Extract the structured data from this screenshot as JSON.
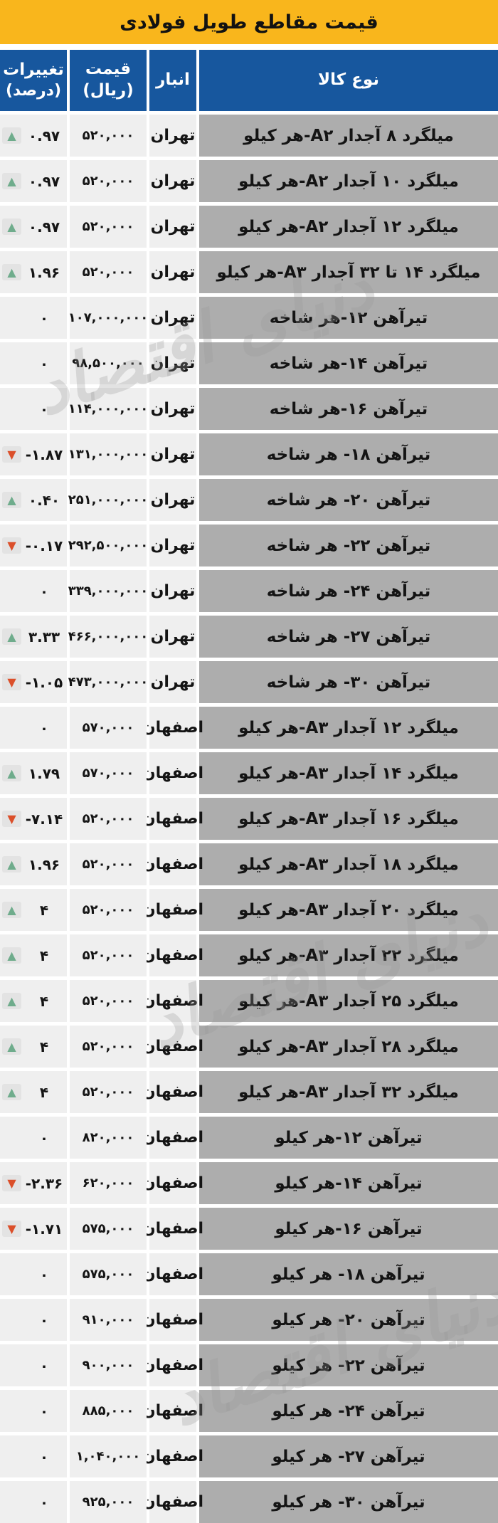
{
  "title": "قیمت مقاطع طویل فولادی",
  "watermark_text": "دنیای اقتصاد",
  "columns": {
    "product": "نوع کالا",
    "warehouse": "انبار",
    "price": "قیمت (ریال)",
    "change_line1": "تغییرات",
    "change_line2": "(درصد)"
  },
  "colors": {
    "title_bg": "#F9B61C",
    "header_bg": "#17579E",
    "header_text": "#FFFFFF",
    "product_cell_bg": "#ADADAD",
    "cell_bg": "#EFEFEF",
    "icon_plate_bg": "#E3E3E3",
    "up_green": "#6FAC8C",
    "down_red": "#DB4F2A",
    "text": "#141414"
  },
  "icons": {
    "up": "trend-up-icon",
    "down": "trend-down-icon"
  },
  "chart_data": {
    "type": "table",
    "title": "قیمت مقاطع طویل فولادی",
    "columns": [
      "نوع کالا",
      "انبار",
      "قیمت (ریال)",
      "تغییرات (درصد)"
    ],
    "rows": [
      {
        "product": "میلگرد ۸ آجدار A۲-هر کیلو",
        "warehouse": "تهران",
        "price_display": "۵۲۰,۰۰۰",
        "price_rial": 520000,
        "change_display": "۰.۹۷",
        "change_pct": 0.97,
        "direction": "up"
      },
      {
        "product": "میلگرد ۱۰ آجدار A۲-هر کیلو",
        "warehouse": "تهران",
        "price_display": "۵۲۰,۰۰۰",
        "price_rial": 520000,
        "change_display": "۰.۹۷",
        "change_pct": 0.97,
        "direction": "up"
      },
      {
        "product": "میلگرد ۱۲ آجدار A۲-هر کیلو",
        "warehouse": "تهران",
        "price_display": "۵۲۰,۰۰۰",
        "price_rial": 520000,
        "change_display": "۰.۹۷",
        "change_pct": 0.97,
        "direction": "up"
      },
      {
        "product": "میلگرد ۱۴ تا ۳۲ آجدار A۳-هر کیلو",
        "warehouse": "تهران",
        "price_display": "۵۲۰,۰۰۰",
        "price_rial": 520000,
        "change_display": "۱.۹۶",
        "change_pct": 1.96,
        "direction": "up"
      },
      {
        "product": "تیرآهن ۱۲-هر شاخه",
        "warehouse": "تهران",
        "price_display": "۱۰۷,۰۰۰,۰۰۰",
        "price_rial": 107000000,
        "change_display": "۰",
        "change_pct": 0,
        "direction": "none"
      },
      {
        "product": "تیرآهن ۱۴-هر شاخه",
        "warehouse": "تهران",
        "price_display": "۹۸,۵۰۰,۰۰۰",
        "price_rial": 98500000,
        "change_display": "۰",
        "change_pct": 0,
        "direction": "none"
      },
      {
        "product": "تیرآهن ۱۶-هر شاخه",
        "warehouse": "تهران",
        "price_display": "۱۱۴,۰۰۰,۰۰۰",
        "price_rial": 114000000,
        "change_display": "۰",
        "change_pct": 0,
        "direction": "none"
      },
      {
        "product": "تیرآهن ۱۸- هر شاخه",
        "warehouse": "تهران",
        "price_display": "۱۳۱,۰۰۰,۰۰۰",
        "price_rial": 131000000,
        "change_display": "-۱.۸۷",
        "change_pct": -1.87,
        "direction": "down"
      },
      {
        "product": "تیرآهن ۲۰- هر شاخه",
        "warehouse": "تهران",
        "price_display": "۲۵۱,۰۰۰,۰۰۰",
        "price_rial": 251000000,
        "change_display": "۰.۴۰",
        "change_pct": 0.4,
        "direction": "up"
      },
      {
        "product": "تیرآهن ۲۲- هر شاخه",
        "warehouse": "تهران",
        "price_display": "۲۹۲,۵۰۰,۰۰۰",
        "price_rial": 292500000,
        "change_display": "-۰.۱۷",
        "change_pct": -0.17,
        "direction": "down"
      },
      {
        "product": "تیرآهن ۲۴- هر شاخه",
        "warehouse": "تهران",
        "price_display": "۳۳۹,۰۰۰,۰۰۰",
        "price_rial": 339000000,
        "change_display": "۰",
        "change_pct": 0,
        "direction": "none"
      },
      {
        "product": "تیرآهن ۲۷- هر شاخه",
        "warehouse": "تهران",
        "price_display": "۴۶۶,۰۰۰,۰۰۰",
        "price_rial": 466000000,
        "change_display": "۳.۳۳",
        "change_pct": 3.33,
        "direction": "up"
      },
      {
        "product": "تیرآهن ۳۰- هر شاخه",
        "warehouse": "تهران",
        "price_display": "۴۷۳,۰۰۰,۰۰۰",
        "price_rial": 473000000,
        "change_display": "-۱.۰۵",
        "change_pct": -1.05,
        "direction": "down"
      },
      {
        "product": "میلگرد ۱۲ آجدار A۳-هر کیلو",
        "warehouse": "اصفهان",
        "price_display": "۵۷۰,۰۰۰",
        "price_rial": 570000,
        "change_display": "۰",
        "change_pct": 0,
        "direction": "none"
      },
      {
        "product": "میلگرد ۱۴ آجدار A۳-هر کیلو",
        "warehouse": "اصفهان",
        "price_display": "۵۷۰,۰۰۰",
        "price_rial": 570000,
        "change_display": "۱.۷۹",
        "change_pct": 1.79,
        "direction": "up"
      },
      {
        "product": "میلگرد ۱۶ آجدار A۳-هر کیلو",
        "warehouse": "اصفهان",
        "price_display": "۵۲۰,۰۰۰",
        "price_rial": 520000,
        "change_display": "-۷.۱۴",
        "change_pct": -7.14,
        "direction": "down"
      },
      {
        "product": "میلگرد ۱۸ آجدار A۳-هر کیلو",
        "warehouse": "اصفهان",
        "price_display": "۵۲۰,۰۰۰",
        "price_rial": 520000,
        "change_display": "۱.۹۶",
        "change_pct": 1.96,
        "direction": "up"
      },
      {
        "product": "میلگرد ۲۰ آجدار A۳-هر کیلو",
        "warehouse": "اصفهان",
        "price_display": "۵۲۰,۰۰۰",
        "price_rial": 520000,
        "change_display": "۴",
        "change_pct": 4,
        "direction": "up"
      },
      {
        "product": "میلگرد ۲۲ آجدار A۳-هر کیلو",
        "warehouse": "اصفهان",
        "price_display": "۵۲۰,۰۰۰",
        "price_rial": 520000,
        "change_display": "۴",
        "change_pct": 4,
        "direction": "up"
      },
      {
        "product": "میلگرد ۲۵ آجدار A۳-هر کیلو",
        "warehouse": "اصفهان",
        "price_display": "۵۲۰,۰۰۰",
        "price_rial": 520000,
        "change_display": "۴",
        "change_pct": 4,
        "direction": "up"
      },
      {
        "product": "میلگرد ۲۸ آجدار A۳-هر کیلو",
        "warehouse": "اصفهان",
        "price_display": "۵۲۰,۰۰۰",
        "price_rial": 520000,
        "change_display": "۴",
        "change_pct": 4,
        "direction": "up"
      },
      {
        "product": "میلگرد ۳۲ آجدار A۳-هر کیلو",
        "warehouse": "اصفهان",
        "price_display": "۵۲۰,۰۰۰",
        "price_rial": 520000,
        "change_display": "۴",
        "change_pct": 4,
        "direction": "up"
      },
      {
        "product": "تیرآهن ۱۲-هر کیلو",
        "warehouse": "اصفهان",
        "price_display": "۸۲۰,۰۰۰",
        "price_rial": 820000,
        "change_display": "۰",
        "change_pct": 0,
        "direction": "none"
      },
      {
        "product": "تیرآهن ۱۴-هر کیلو",
        "warehouse": "اصفهان",
        "price_display": "۶۲۰,۰۰۰",
        "price_rial": 620000,
        "change_display": "-۲.۳۶",
        "change_pct": -2.36,
        "direction": "down"
      },
      {
        "product": "تیرآهن ۱۶-هر کیلو",
        "warehouse": "اصفهان",
        "price_display": "۵۷۵,۰۰۰",
        "price_rial": 575000,
        "change_display": "-۱.۷۱",
        "change_pct": -1.71,
        "direction": "down"
      },
      {
        "product": "تیرآهن ۱۸- هر کیلو",
        "warehouse": "اصفهان",
        "price_display": "۵۷۵,۰۰۰",
        "price_rial": 575000,
        "change_display": "۰",
        "change_pct": 0,
        "direction": "none"
      },
      {
        "product": "تیرآهن ۲۰- هر کیلو",
        "warehouse": "اصفهان",
        "price_display": "۹۱۰,۰۰۰",
        "price_rial": 910000,
        "change_display": "۰",
        "change_pct": 0,
        "direction": "none"
      },
      {
        "product": "تیرآهن ۲۲- هر کیلو",
        "warehouse": "اصفهان",
        "price_display": "۹۰۰,۰۰۰",
        "price_rial": 900000,
        "change_display": "۰",
        "change_pct": 0,
        "direction": "none"
      },
      {
        "product": "تیرآهن ۲۴- هر کیلو",
        "warehouse": "اصفهان",
        "price_display": "۸۸۵,۰۰۰",
        "price_rial": 885000,
        "change_display": "۰",
        "change_pct": 0,
        "direction": "none"
      },
      {
        "product": "تیرآهن ۲۷- هر کیلو",
        "warehouse": "اصفهان",
        "price_display": "۱,۰۴۰,۰۰۰",
        "price_rial": 1040000,
        "change_display": "۰",
        "change_pct": 0,
        "direction": "none"
      },
      {
        "product": "تیرآهن ۳۰- هر کیلو",
        "warehouse": "اصفهان",
        "price_display": "۹۲۵,۰۰۰",
        "price_rial": 925000,
        "change_display": "۰",
        "change_pct": 0,
        "direction": "none"
      }
    ]
  }
}
